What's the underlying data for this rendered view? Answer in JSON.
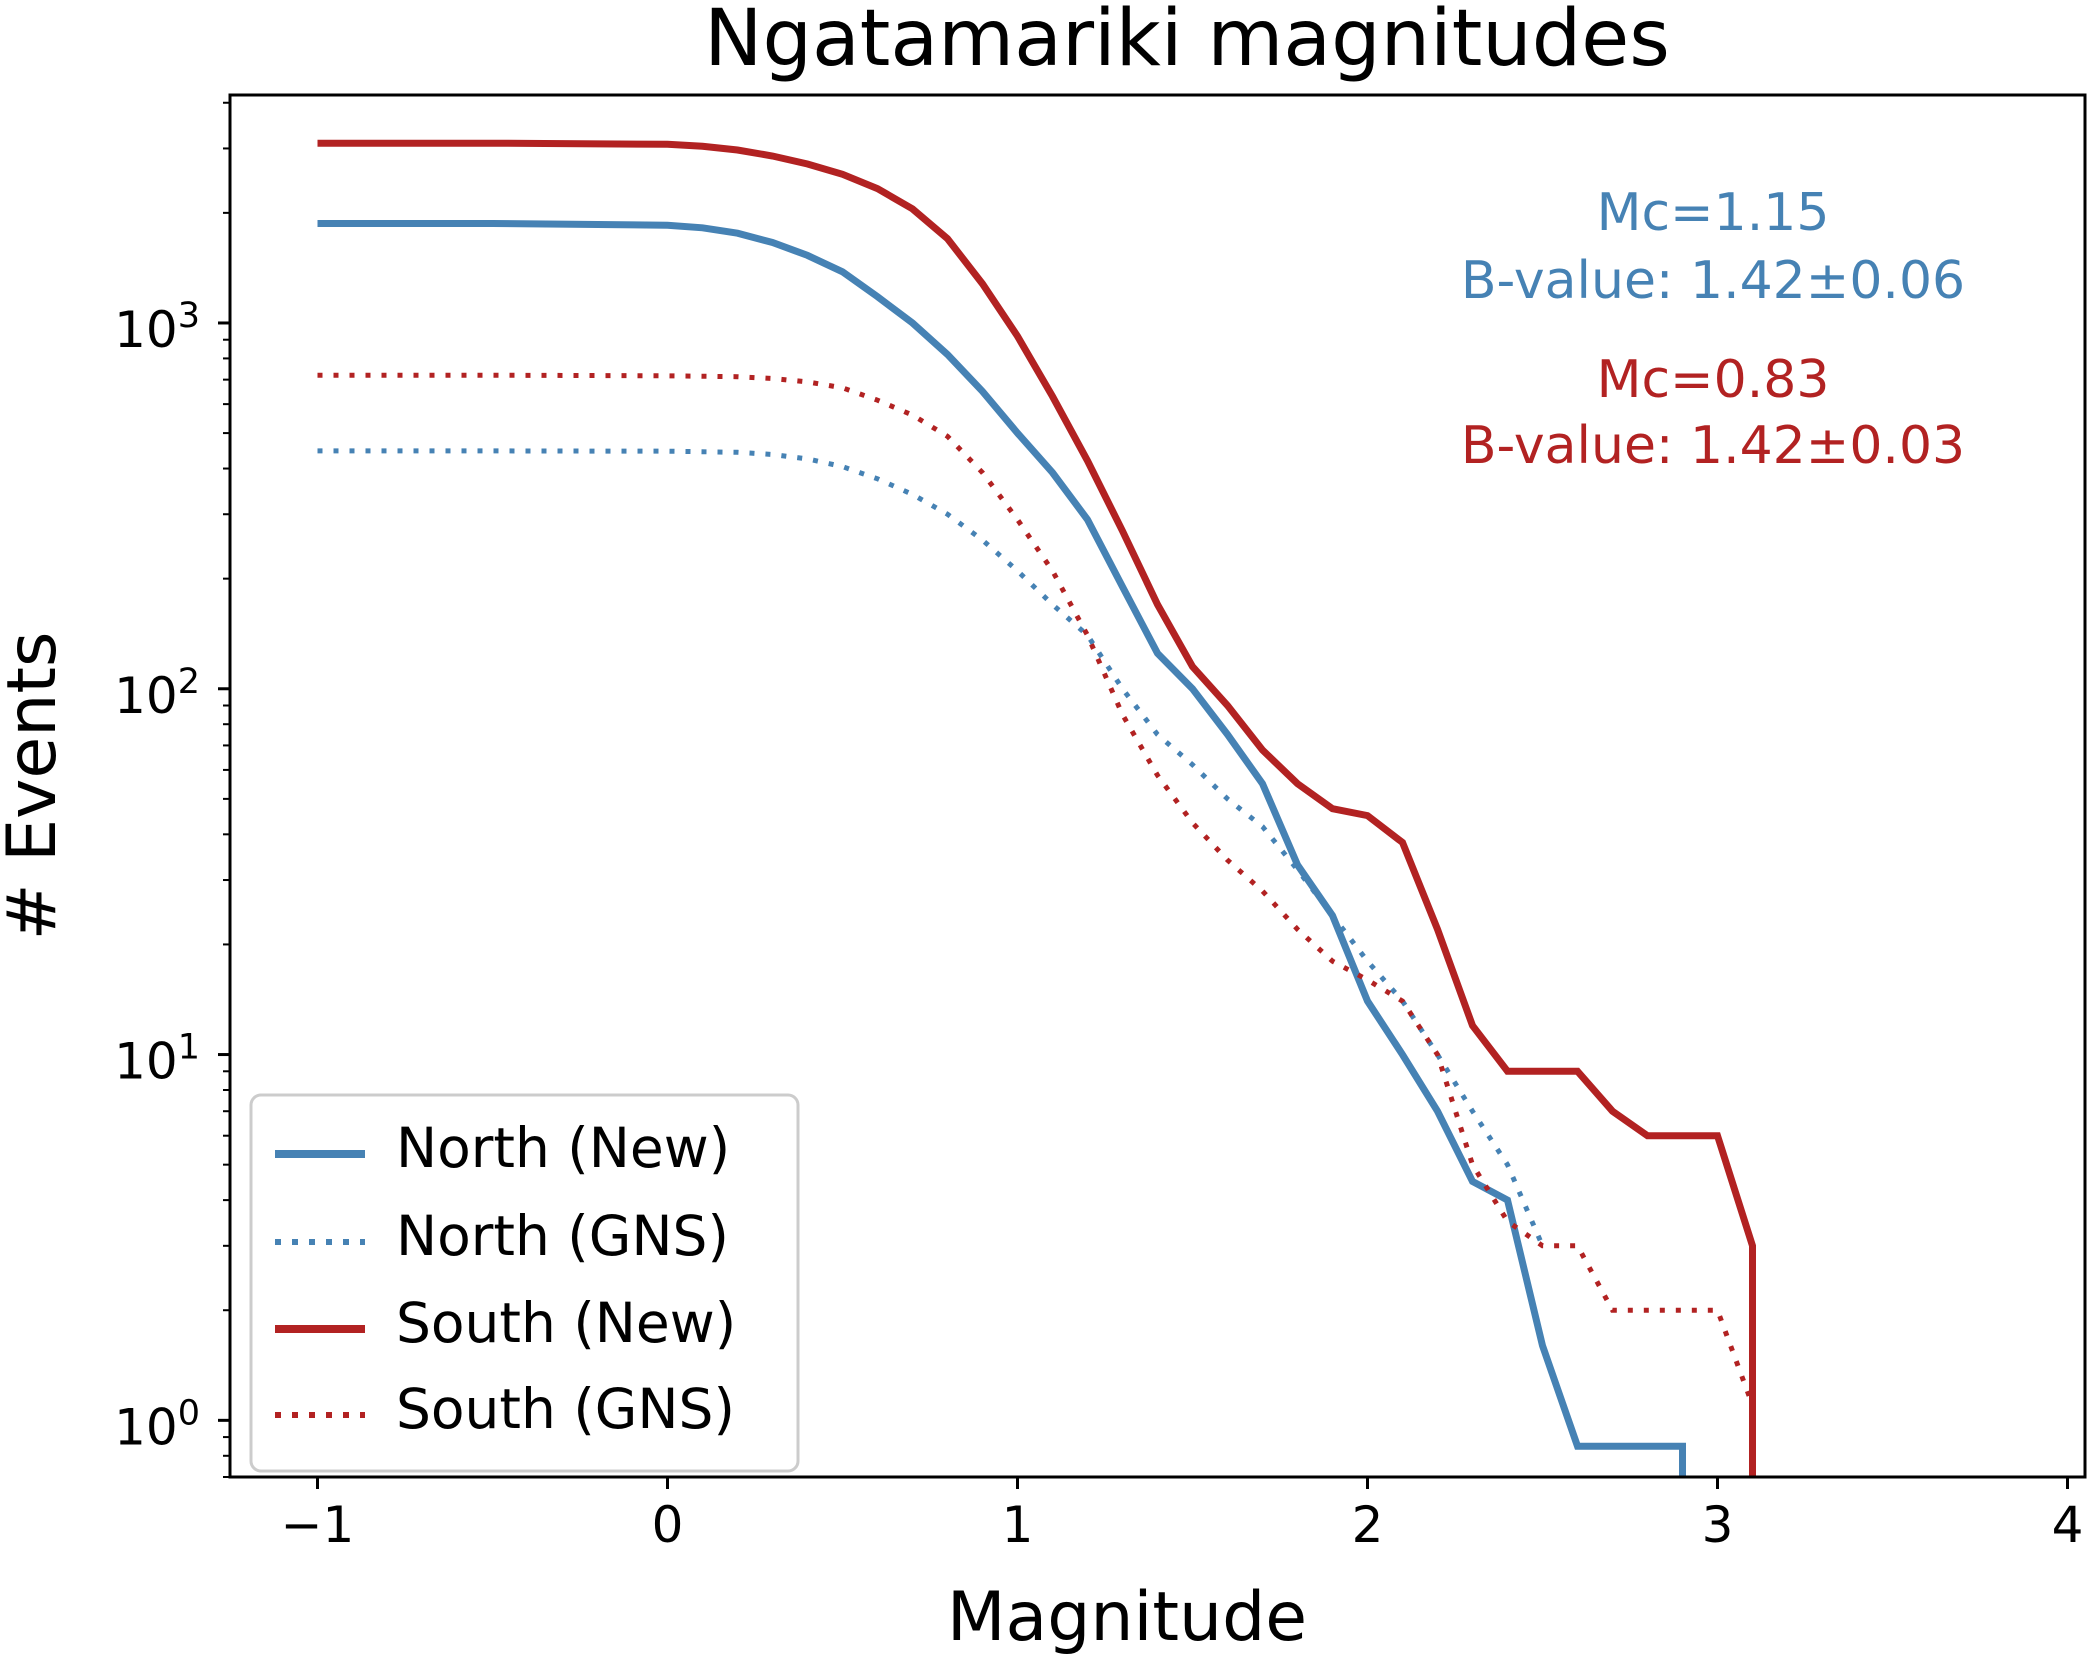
{
  "chart_data": {
    "type": "line",
    "title": "Ngatamariki magnitudes",
    "xlabel": "Magnitude",
    "ylabel": "# Events",
    "xlim": [
      -1.25,
      4.05
    ],
    "ylim": [
      0.7,
      4200
    ],
    "yscale": "log",
    "grid": false,
    "legend_position": "lower-left",
    "xticks": [
      {
        "value": -1,
        "label": "−1"
      },
      {
        "value": 0,
        "label": "0"
      },
      {
        "value": 1,
        "label": "1"
      },
      {
        "value": 2,
        "label": "2"
      },
      {
        "value": 3,
        "label": "3"
      },
      {
        "value": 4,
        "label": "4"
      }
    ],
    "yticks": [
      {
        "value": 1,
        "base": "10",
        "exp": "0"
      },
      {
        "value": 10,
        "base": "10",
        "exp": "1"
      },
      {
        "value": 100,
        "base": "10",
        "exp": "2"
      },
      {
        "value": 1000,
        "base": "10",
        "exp": "3"
      }
    ],
    "series": [
      {
        "name": "North (New)",
        "color": "#4682B4",
        "style": "solid",
        "x": [
          -1.0,
          -0.5,
          0.0,
          0.1,
          0.2,
          0.3,
          0.4,
          0.5,
          0.6,
          0.7,
          0.8,
          0.9,
          1.0,
          1.1,
          1.2,
          1.3,
          1.4,
          1.5,
          1.6,
          1.7,
          1.8,
          1.9,
          2.0,
          2.1,
          2.2,
          2.3,
          2.4,
          2.5,
          2.6,
          2.7,
          2.8,
          2.9,
          2.9
        ],
        "y": [
          1870,
          1870,
          1850,
          1820,
          1760,
          1660,
          1530,
          1380,
          1180,
          1000,
          820,
          650,
          500,
          390,
          290,
          190,
          125,
          100,
          75,
          55,
          33,
          24,
          14,
          10,
          7,
          4.5,
          4,
          1.6,
          0.85,
          0.85,
          0.85,
          0.85,
          0.5
        ]
      },
      {
        "name": "North (GNS)",
        "color": "#4682B4",
        "style": "dotted",
        "x": [
          -1.0,
          -0.5,
          0.0,
          0.2,
          0.3,
          0.4,
          0.5,
          0.6,
          0.7,
          0.8,
          0.9,
          1.0,
          1.1,
          1.2,
          1.3,
          1.4,
          1.5,
          1.6,
          1.7,
          1.8,
          1.9,
          2.0,
          2.1,
          2.2,
          2.3,
          2.4,
          2.5
        ],
        "y": [
          447,
          447,
          446,
          443,
          437,
          425,
          405,
          375,
          340,
          300,
          255,
          210,
          170,
          140,
          100,
          75,
          62,
          50,
          42,
          32,
          24,
          18,
          14,
          10,
          7,
          5,
          3
        ]
      },
      {
        "name": "South (New)",
        "color": "#B22222",
        "style": "solid",
        "x": [
          -1.0,
          -0.5,
          0.0,
          0.1,
          0.2,
          0.3,
          0.4,
          0.5,
          0.6,
          0.7,
          0.8,
          0.9,
          1.0,
          1.1,
          1.2,
          1.3,
          1.4,
          1.5,
          1.6,
          1.7,
          1.8,
          1.9,
          2.0,
          2.1,
          2.2,
          2.3,
          2.4,
          2.5,
          2.6,
          2.7,
          2.8,
          2.9,
          3.0,
          3.1,
          3.1
        ],
        "y": [
          3100,
          3100,
          3080,
          3040,
          2970,
          2860,
          2720,
          2550,
          2330,
          2050,
          1700,
          1280,
          920,
          630,
          420,
          270,
          170,
          115,
          90,
          68,
          55,
          47,
          45,
          38,
          22,
          12,
          9,
          9,
          9,
          7,
          6,
          6,
          6,
          3,
          0.5
        ]
      },
      {
        "name": "South (GNS)",
        "color": "#B22222",
        "style": "dotted",
        "x": [
          -1.0,
          -0.5,
          0.0,
          0.2,
          0.3,
          0.4,
          0.5,
          0.6,
          0.7,
          0.8,
          0.9,
          1.0,
          1.1,
          1.2,
          1.3,
          1.4,
          1.5,
          1.6,
          1.7,
          1.8,
          1.9,
          2.0,
          2.1,
          2.2,
          2.3,
          2.4,
          2.5,
          2.6,
          2.7,
          2.8,
          2.9,
          3.0,
          3.1
        ],
        "y": [
          720,
          720,
          717,
          713,
          705,
          690,
          665,
          615,
          560,
          490,
          390,
          290,
          210,
          140,
          85,
          58,
          43,
          34,
          28,
          22,
          18,
          16,
          14,
          10,
          5,
          3.5,
          3,
          3,
          2,
          2,
          2,
          2,
          1.1
        ]
      }
    ],
    "annotations": [
      {
        "text": "Mc=1.15",
        "color": "#4682B4"
      },
      {
        "text": "B-value: 1.42±0.06",
        "color": "#4682B4"
      },
      {
        "text": "Mc=0.83",
        "color": "#B22222"
      },
      {
        "text": "B-value: 1.42±0.03",
        "color": "#B22222"
      }
    ]
  }
}
